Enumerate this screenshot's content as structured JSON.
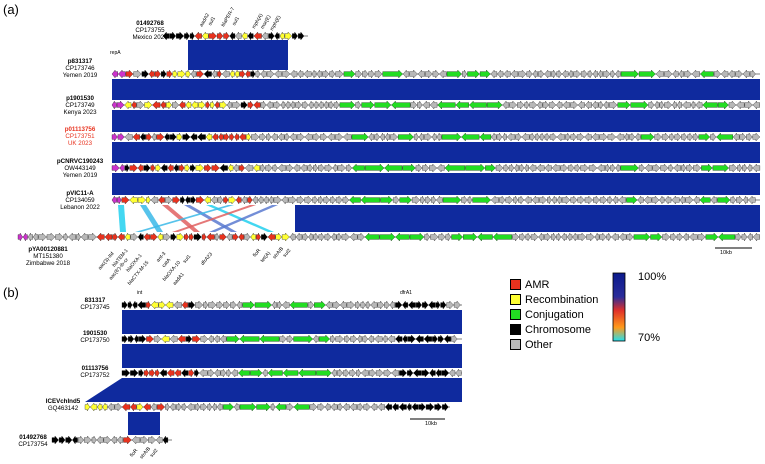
{
  "panels": {
    "a": "(a)",
    "b": "(b)"
  },
  "panel_a": {
    "tracks": [
      {
        "name": "01492768",
        "acc": "CP173755",
        "origin": "Mexico 2024",
        "highlight": false
      },
      {
        "name": "p831317",
        "acc": "CP173746",
        "origin": "Yemen 2019",
        "highlight": false
      },
      {
        "name": "p1901530",
        "acc": "CP173749",
        "origin": "Kenya 2023",
        "highlight": false
      },
      {
        "name": "p01113756",
        "acc": "CP173751",
        "origin": "UK 2023",
        "highlight": true
      },
      {
        "name": "pCNRVC190243",
        "acc": "OW443149",
        "origin": "Yemen 2019",
        "highlight": false
      },
      {
        "name": "pVIC11-A",
        "acc": "CP134059",
        "origin": "Lebanon 2022",
        "highlight": false
      },
      {
        "name": "pYA00120881",
        "acc": "MT151380",
        "origin": "Zimbabwe 2018",
        "highlight": false
      }
    ],
    "top_gene_labels": [
      "aadA2",
      "sul1",
      "blaPER-7",
      "sul1",
      "mph(A)",
      "msr(E)",
      "mph(E)"
    ],
    "first_label": "repA",
    "bottom_gene_labels": [
      "aac(3)-IId",
      "blaTEM-1",
      "aac(6')-Ib-cr",
      "blaOXA-1",
      "blaCTX-M-15",
      "ant-3",
      "catA",
      "blaOXA-10",
      "aadA1",
      "sul1",
      "dfrA23",
      "floR",
      "tet(A)",
      "strA/B",
      "sul2"
    ],
    "scale": "10kb"
  },
  "panel_b": {
    "tracks": [
      {
        "name": "831317",
        "acc": "CP173745"
      },
      {
        "name": "1901530",
        "acc": "CP173750"
      },
      {
        "name": "01113756",
        "acc": "CP173752"
      },
      {
        "name": "ICEVchInd5",
        "acc": "GQ463142"
      },
      {
        "name": "01492768",
        "acc": "CP173754"
      }
    ],
    "top_label_1": "int",
    "top_label_2": "dfrA1",
    "bottom_labels": [
      "floR",
      "strA/B",
      "sul2"
    ],
    "scale": "10kb"
  },
  "legend": {
    "items": [
      {
        "label": "AMR",
        "color": "#e8321e"
      },
      {
        "label": "Recombination",
        "color": "#ffff33"
      },
      {
        "label": "Conjugation",
        "color": "#22dd22"
      },
      {
        "label": "Chromosome",
        "color": "#000000"
      },
      {
        "label": "Other",
        "color": "#b8b8b8"
      }
    ],
    "identity_max": "100%",
    "identity_min": "70%"
  },
  "colors": {
    "link": "#0f2a9e",
    "amr": "#e8321e",
    "recomb": "#ffff33",
    "conj": "#22dd22",
    "chrom": "#000000",
    "other": "#b8b8b8",
    "highlight_text": "#e8321e"
  }
}
